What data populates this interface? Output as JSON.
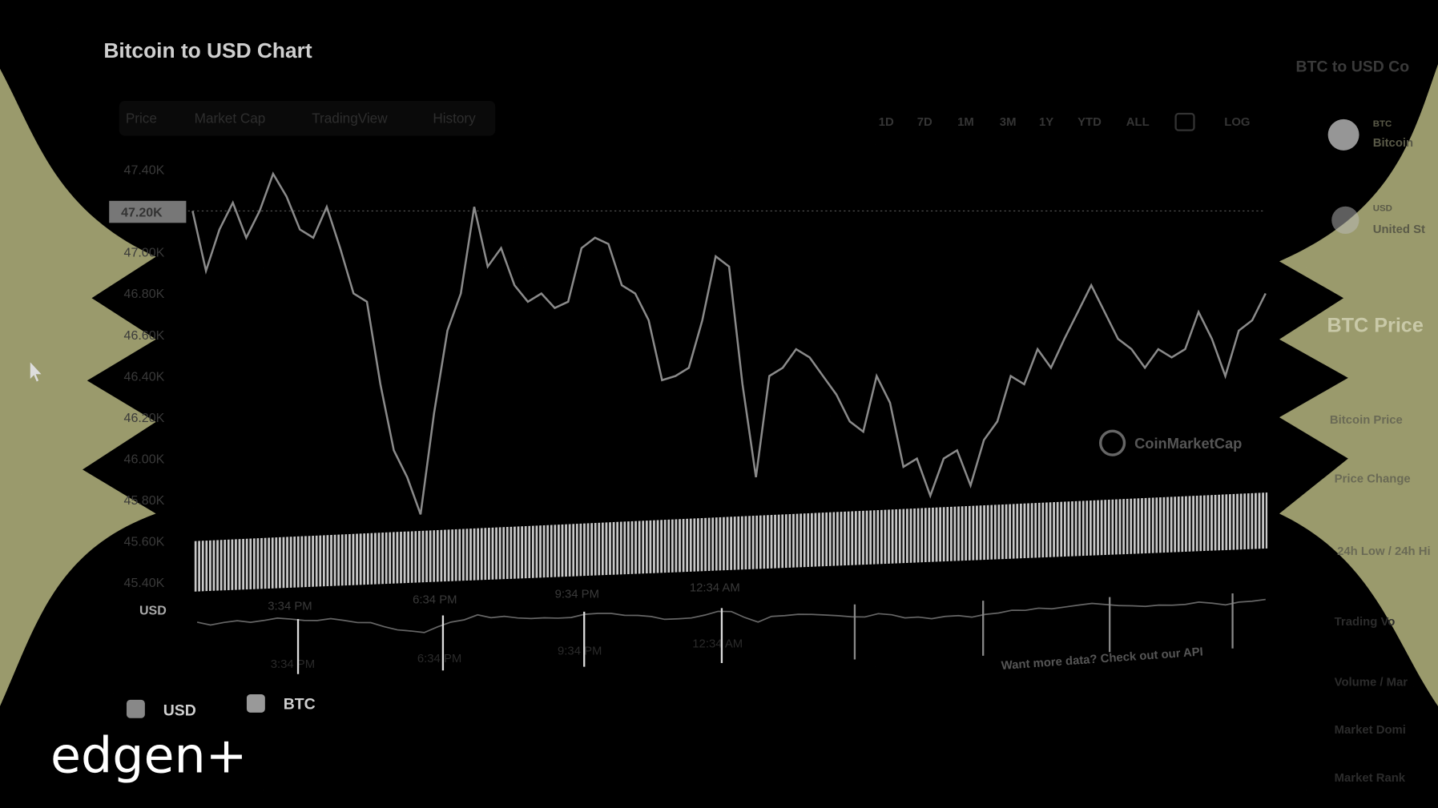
{
  "header": {
    "title": "Bitcoin to USD Chart"
  },
  "tabs": [
    {
      "label": "Price"
    },
    {
      "label": "Market Cap"
    },
    {
      "label": "TradingView"
    },
    {
      "label": "History"
    }
  ],
  "ranges": [
    {
      "label": "1D"
    },
    {
      "label": "7D"
    },
    {
      "label": "1M"
    },
    {
      "label": "3M"
    },
    {
      "label": "1Y"
    },
    {
      "label": "YTD"
    },
    {
      "label": "ALL"
    },
    {
      "label": "LOG"
    }
  ],
  "price_marker": "47.20K",
  "watermark": "CoinMarketCap",
  "api_note": "Want more data? Check out our API",
  "legend": [
    {
      "label": "USD"
    },
    {
      "label": "BTC"
    }
  ],
  "logo": "edgen+",
  "side_panel": {
    "title": "BTC to USD Co",
    "from_code": "BTC",
    "from_name": "Bitcoin",
    "to_code": "USD",
    "to_name": "United St",
    "section_title": "BTC Price",
    "rows": [
      "Bitcoin Price",
      "Price Change",
      "24h Low / 24h Hi",
      "Trading Vo",
      "Volume / Mar",
      "Market Domi",
      "Market Rank"
    ]
  },
  "colors": {
    "background": "#000000",
    "accent_shape": "#9a9a6c",
    "line": "#8a8a8a",
    "volume": "#bdbdbd"
  },
  "chart_data": {
    "type": "line",
    "title": "Bitcoin to USD Chart",
    "ylabel": "USD",
    "ylim": [
      45.4,
      47.4
    ],
    "y_unit": "K",
    "yticks": [
      "47.40K",
      "47.20K",
      "47.00K",
      "46.80K",
      "46.60K",
      "46.40K",
      "46.20K",
      "46.00K",
      "45.80K",
      "45.60K",
      "45.40K"
    ],
    "xticks": [
      "3:34 PM",
      "6:34 PM",
      "9:34 PM",
      "12:34 AM"
    ],
    "grid": false,
    "values": [
      47.2,
      46.91,
      47.11,
      47.24,
      47.07,
      47.2,
      47.38,
      47.27,
      47.11,
      47.07,
      47.22,
      47.02,
      46.8,
      46.76,
      46.36,
      46.04,
      45.91,
      45.73,
      46.22,
      46.62,
      46.8,
      47.22,
      46.93,
      47.02,
      46.84,
      46.76,
      46.8,
      46.73,
      46.76,
      47.02,
      47.07,
      47.04,
      46.84,
      46.8,
      46.67,
      46.38,
      46.4,
      46.44,
      46.67,
      46.98,
      46.93,
      46.36,
      45.91,
      46.4,
      46.44,
      46.53,
      46.49,
      46.4,
      46.31,
      46.18,
      46.13,
      46.4,
      46.27,
      45.96,
      46.0,
      45.82,
      46.0,
      46.04,
      45.87,
      46.09,
      46.18,
      46.4,
      46.36,
      46.53,
      46.44,
      46.58,
      46.71,
      46.84,
      46.71,
      46.58,
      46.53,
      46.44,
      46.53,
      46.49,
      46.53,
      46.71,
      46.58,
      46.4,
      46.62,
      46.67,
      46.8
    ],
    "legend": [
      "USD",
      "BTC"
    ],
    "legend_placement": "bottom-left"
  }
}
